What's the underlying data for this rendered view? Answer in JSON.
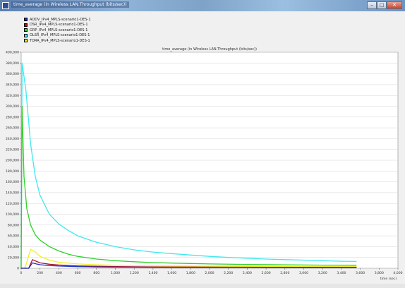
{
  "window": {
    "title": "time_average (in Wireless LAN.Throughput (bits/sec))",
    "buttons": {
      "minimize": "–",
      "maximize": "□",
      "close": "✕"
    }
  },
  "legend": [
    {
      "label": "AODV_IPv4_MPLS-scenario1-DES-1",
      "color": "#1f2fbf"
    },
    {
      "label": "DSR_IPv4_MPLS-scenario1-DES-1",
      "color": "#b0102a"
    },
    {
      "label": "GRP_IPv4_MPLS-scenario1-DES-1",
      "color": "#2fd02a"
    },
    {
      "label": "OLSR_IPv4_MPLS-scenario1-DES-1",
      "color": "#40e8ee"
    },
    {
      "label": "TORA_IPv4_MPLS-scenario1-DES-1",
      "color": "#f0f020"
    }
  ],
  "chart_data": {
    "type": "line",
    "title": "time_average (in Wireless LAN.Throughput (bits/sec))",
    "xlabel": "time (sec)",
    "ylabel": "",
    "xlim": [
      0,
      4000
    ],
    "ylim": [
      0,
      400000
    ],
    "xticks": [
      0,
      200,
      400,
      600,
      800,
      1000,
      1200,
      1400,
      1600,
      1800,
      2000,
      2200,
      2400,
      2600,
      2800,
      3000,
      3200,
      3400,
      3600,
      3800,
      4000
    ],
    "xtick_labels": [
      "0",
      "200",
      "400",
      "600",
      "800",
      "1,000",
      "1,200",
      "1,400",
      "1,600",
      "1,800",
      "2,000",
      "2,200",
      "2,400",
      "2,600",
      "2,800",
      "3,000",
      "3,200",
      "3,400",
      "3,600",
      "3,800",
      "4,000"
    ],
    "yticks": [
      0,
      20000,
      40000,
      60000,
      80000,
      100000,
      120000,
      140000,
      160000,
      180000,
      200000,
      220000,
      240000,
      260000,
      280000,
      300000,
      320000,
      340000,
      360000,
      380000,
      400000
    ],
    "ytick_labels": [
      "0",
      "20,000",
      "40,000",
      "60,000",
      "80,000",
      "100,000",
      "120,000",
      "140,000",
      "160,000",
      "180,000",
      "200,000",
      "220,000",
      "240,000",
      "260,000",
      "280,000",
      "300,000",
      "320,000",
      "340,000",
      "360,000",
      "380,000",
      "400,000"
    ],
    "grid": true,
    "legend_position": "top-left",
    "series": [
      {
        "name": "OLSR_IPv4_MPLS-scenario1-DES-1",
        "color": "#40e8ee",
        "x": [
          0,
          10,
          50,
          100,
          150,
          200,
          300,
          400,
          500,
          600,
          800,
          1000,
          1200,
          1400,
          1600,
          1800,
          2000,
          2200,
          2400,
          2600,
          2800,
          3000,
          3200,
          3400,
          3560
        ],
        "y": [
          0,
          380000,
          330000,
          230000,
          170000,
          135000,
          100000,
          82000,
          70000,
          60000,
          48000,
          40000,
          34000,
          30000,
          27000,
          24500,
          22000,
          20000,
          18500,
          17000,
          16000,
          15000,
          14000,
          13000,
          12500
        ]
      },
      {
        "name": "GRP_IPv4_MPLS-scenario1-DES-1",
        "color": "#2fd02a",
        "x": [
          0,
          10,
          30,
          60,
          100,
          150,
          200,
          300,
          400,
          500,
          600,
          800,
          1000,
          1200,
          1400,
          1600,
          1800,
          2000,
          2400,
          2800,
          3200,
          3560
        ],
        "y": [
          0,
          300000,
          170000,
          110000,
          80000,
          62000,
          52000,
          40000,
          32000,
          26000,
          22000,
          17000,
          14000,
          12000,
          10500,
          9500,
          8700,
          8000,
          7000,
          6300,
          5800,
          5500
        ]
      },
      {
        "name": "TORA_IPv4_MPLS-scenario1-DES-1",
        "color": "#f0f020",
        "x": [
          0,
          40,
          100,
          150,
          200,
          300,
          400,
          600,
          800,
          1000,
          1400,
          1800,
          2200,
          2600,
          3000,
          3400,
          3560
        ],
        "y": [
          0,
          0,
          35000,
          30000,
          22000,
          15000,
          11000,
          8000,
          6500,
          5500,
          4500,
          4000,
          3600,
          3300,
          3100,
          3000,
          3000
        ]
      },
      {
        "name": "DSR_IPv4_MPLS-scenario1-DES-1",
        "color": "#b0102a",
        "x": [
          0,
          80,
          120,
          160,
          200,
          300,
          400,
          600,
          800,
          1000,
          1400,
          1800,
          2200,
          2600,
          3000,
          3400,
          3560
        ],
        "y": [
          0,
          0,
          16000,
          13000,
          10000,
          7500,
          6000,
          4500,
          3600,
          3000,
          2500,
          2200,
          2000,
          1800,
          1700,
          1600,
          1600
        ]
      },
      {
        "name": "AODV_IPv4_MPLS-scenario1-DES-1",
        "color": "#1f2fbf",
        "x": [
          0,
          80,
          120,
          160,
          200,
          300,
          400,
          600,
          800,
          1000,
          1400,
          1800,
          2200,
          2600,
          3000,
          3400,
          3560
        ],
        "y": [
          0,
          0,
          10000,
          8000,
          6500,
          5000,
          4000,
          3000,
          2400,
          2000,
          1700,
          1500,
          1400,
          1300,
          1200,
          1100,
          1100
        ]
      }
    ]
  }
}
